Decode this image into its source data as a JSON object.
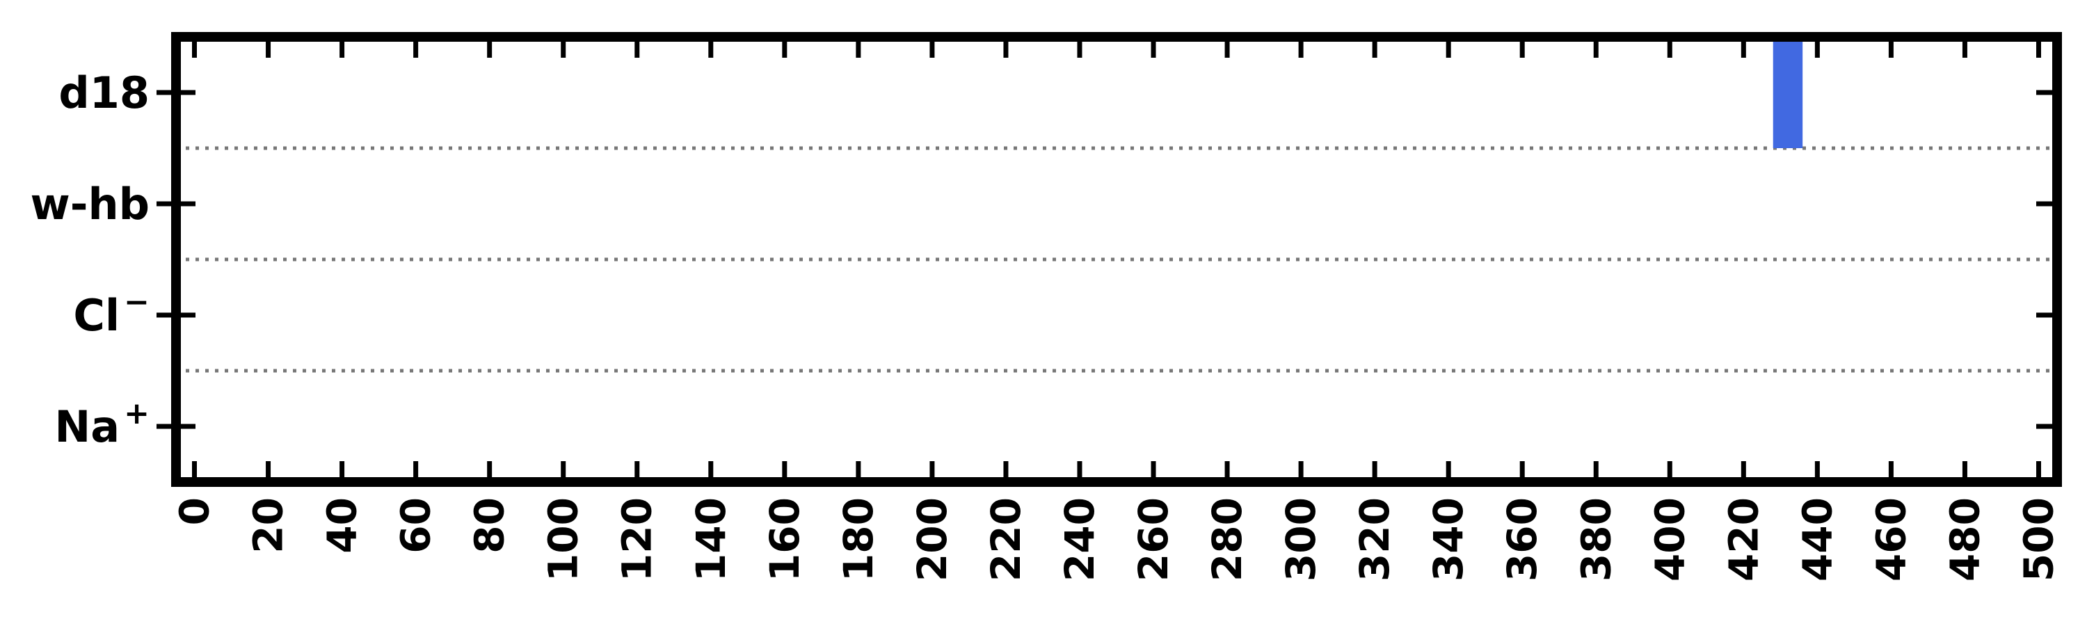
{
  "chart_data": {
    "type": "bar",
    "title": "",
    "xlabel": "",
    "ylabel": "",
    "xlim": [
      -5,
      505
    ],
    "x_ticks": [
      0,
      20,
      40,
      60,
      80,
      100,
      120,
      140,
      160,
      180,
      200,
      220,
      240,
      260,
      280,
      300,
      320,
      340,
      360,
      380,
      400,
      420,
      440,
      460,
      480,
      500
    ],
    "x_tick_labels": [
      "0",
      "20",
      "40",
      "60",
      "80",
      "100",
      "120",
      "140",
      "160",
      "180",
      "200",
      "220",
      "240",
      "260",
      "280",
      "300",
      "320",
      "340",
      "360",
      "380",
      "400",
      "420",
      "440",
      "460",
      "480",
      "500"
    ],
    "categories": [
      {
        "key": "na",
        "label": "Na",
        "sup": "+"
      },
      {
        "key": "cl",
        "label": "Cl",
        "sup": "−"
      },
      {
        "key": "whb",
        "label": "w-hb",
        "sup": ""
      },
      {
        "key": "d18",
        "label": "d18",
        "sup": ""
      }
    ],
    "series": [
      {
        "color": "#4169E1",
        "bars": [
          {
            "category": "d18",
            "x_start": 428,
            "x_end": 436
          }
        ]
      }
    ],
    "grid": "horizontal dotted separators between rows",
    "separator_color": "#777777",
    "legend": "none"
  }
}
